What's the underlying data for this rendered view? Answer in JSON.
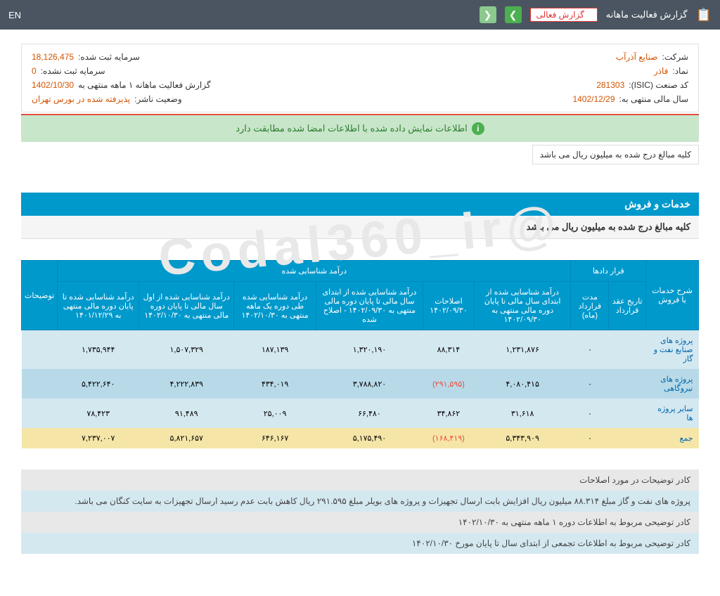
{
  "topbar": {
    "title": "گزارش فعالیت ماهانه",
    "dropdown": "گزارش فعالی",
    "lang": "EN"
  },
  "info": {
    "company_label": "شرکت:",
    "company_val": "صنایع آذرآب",
    "cap_reg_label": "سرمایه ثبت شده:",
    "cap_reg_val": "18,126,475",
    "symbol_label": "نماد:",
    "symbol_val": "فاذر",
    "cap_unreg_label": "سرمایه ثبت نشده:",
    "cap_unreg_val": "0",
    "isic_label": "کد صنعت (ISIC):",
    "isic_val": "281303",
    "report_label": "گزارش فعالیت ماهانه ۱ ماهه منتهی به",
    "report_val": "1402/10/30",
    "fy_label": "سال مالی منتهی به:",
    "fy_val": "1402/12/29",
    "status_label": "وضعیت ناشر:",
    "status_val": "پذیرفته شده در بورس تهران"
  },
  "banner": "اطلاعات نمایش داده شده با اطلاعات امضا شده مطابقت دارد",
  "note": "کلیه مبالغ درج شده به میلیون ریال می باشد",
  "section": {
    "header": "خدمات و فروش",
    "sub": "کلیه مبالغ درج شده به میلیون ریال می باشد"
  },
  "table": {
    "h_desc": "شرح خدمات یا فروش",
    "h_contracts": "قرار دادها",
    "h_date": "تاریخ عقد قرارداد",
    "h_duration": "مدت قرارداد (ماه)",
    "h_income": "درآمد شناسایی شده",
    "h_c1": "درآمد شناسایی شده از ابتدای سال مالی تا پایان دوره مالی منتهی به ۱۴۰۲/۰۹/۳۰",
    "h_c2": "اصلاحات ۱۴۰۲/۰۹/۳۰",
    "h_c3": "درآمد شناسایی شده از ابتدای سال مالی تا پایان دوره مالی منتهی به ۱۴۰۲/۰۹/۳۰ - اصلاح شده",
    "h_c4": "درآمد شناسایی شده طی دوره یک ماهه منتهی به ۱۴۰۲/۱۰/۳۰",
    "h_c5": "درآمد شناسایی شده از اول سال مالی تا پایان دوره مالی منتهی به ۱۴۰۲/۱۰/۳۰",
    "h_c6": "درآمد شناسایی شده تا پایان دوره مالی منتهی به ۱۴۰۱/۱۲/۲۹",
    "h_notes": "توضیحات",
    "rows": [
      {
        "label": "پروژه های صنایع نفت و گاز",
        "date": "",
        "dur": "۰",
        "c1": "۱,۲۳۱,۸۷۶",
        "c2": "۸۸,۳۱۴",
        "c3": "۱,۳۲۰,۱۹۰",
        "c4": "۱۸۷,۱۳۹",
        "c5": "۱,۵۰۷,۳۲۹",
        "c6": "۱,۷۳۵,۹۴۴"
      },
      {
        "label": "پروژه های نیروگاهی",
        "date": "",
        "dur": "۰",
        "c1": "۴,۰۸۰,۴۱۵",
        "c2": "(۲۹۱,۵۹۵)",
        "c2neg": true,
        "c3": "۳,۷۸۸,۸۲۰",
        "c4": "۴۳۴,۰۱۹",
        "c5": "۴,۲۲۲,۸۳۹",
        "c6": "۵,۴۲۲,۶۴۰"
      },
      {
        "label": "سایر پروژه ها",
        "date": "",
        "dur": "۰",
        "c1": "۳۱,۶۱۸",
        "c2": "۳۴,۸۶۲",
        "c3": "۶۶,۴۸۰",
        "c4": "۲۵,۰۰۹",
        "c5": "۹۱,۴۸۹",
        "c6": "۷۸,۴۲۳"
      }
    ],
    "total": {
      "label": "جمع",
      "dur": "۰",
      "c1": "۵,۳۴۳,۹۰۹",
      "c2": "(۱۶۸,۴۱۹)",
      "c2neg": true,
      "c3": "۵,۱۷۵,۴۹۰",
      "c4": "۶۴۶,۱۶۷",
      "c5": "۵,۸۲۱,۶۵۷",
      "c6": "۷,۲۳۷,۰۰۷"
    }
  },
  "notes": [
    "کادر توضیحات در مورد اصلاحات",
    "پروژه های نفت و گاز مبلغ ۸۸.۳۱۴ میلیون ریال افزایش بابت ارسال تجهیزات و پروژه های بویلر مبلغ ۲۹۱.۵۹۵ ریال کاهش بابت عدم رسید ارسال تجهیزات به سایت کنگان می باشد.",
    "کادر توضیحی مربوط به اطلاعات دوره ۱ ماهه منتهی به ۱۴۰۲/۱۰/۳۰",
    "کادر توضیحی مربوط به اطلاعات تجمعی از ابتدای سال تا پایان مورخ ۱۴۰۲/۱۰/۳۰"
  ],
  "watermark": "@Codal360_ir"
}
